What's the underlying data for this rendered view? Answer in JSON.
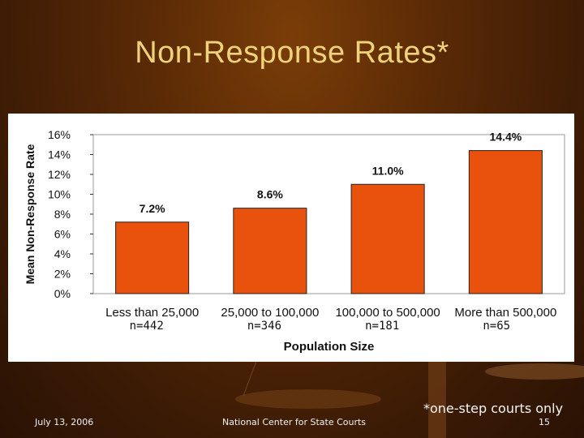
{
  "slide": {
    "title": "Non-Response Rates*",
    "footnote": "*one-step courts only",
    "date": "July 13, 2006",
    "organization": "National Center for State Courts",
    "page_number": "15"
  },
  "chart_data": {
    "type": "bar",
    "categories": [
      "Less than 25,000",
      "25,000 to 100,000",
      "100,000 to 500,000",
      "More than 500,000"
    ],
    "values": [
      7.2,
      8.6,
      11.0,
      14.4
    ],
    "data_labels": [
      "7.2%",
      "8.6%",
      "11.0%",
      "14.4%"
    ],
    "sample_sizes": [
      "n=442",
      "n=346",
      "n=181",
      "n=65"
    ],
    "xlabel": "Population Size",
    "ylabel": "Mean Non-Response Rate",
    "ylim": [
      0,
      16
    ],
    "yticks": [
      0,
      2,
      4,
      6,
      8,
      10,
      12,
      14,
      16
    ],
    "ytick_labels": [
      "0%",
      "2%",
      "4%",
      "6%",
      "8%",
      "10%",
      "12%",
      "14%",
      "16%"
    ],
    "bar_color": "#e8520c",
    "grid": false,
    "legend": "none"
  }
}
